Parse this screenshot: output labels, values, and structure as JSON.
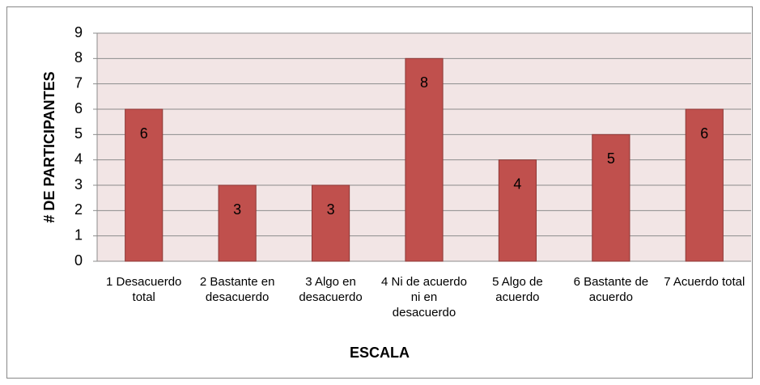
{
  "chart_data": {
    "type": "bar",
    "categories": [
      "1 Desacuerdo total",
      "2 Bastante en desacuerdo",
      "3 Algo en desacuerdo",
      "4 Ni de acuerdo ni en desacuerdo",
      "5 Algo de acuerdo",
      "6 Bastante de acuerdo",
      "7 Acuerdo total"
    ],
    "values": [
      6,
      3,
      3,
      8,
      4,
      5,
      6
    ],
    "color": "#c0504d",
    "ylim": [
      0,
      9
    ],
    "yticks": [
      0,
      1,
      2,
      3,
      4,
      5,
      6,
      7,
      8,
      9
    ],
    "grid": true,
    "x_label": "ESCALA",
    "y_label": "# DE PARTICIPANTES"
  }
}
